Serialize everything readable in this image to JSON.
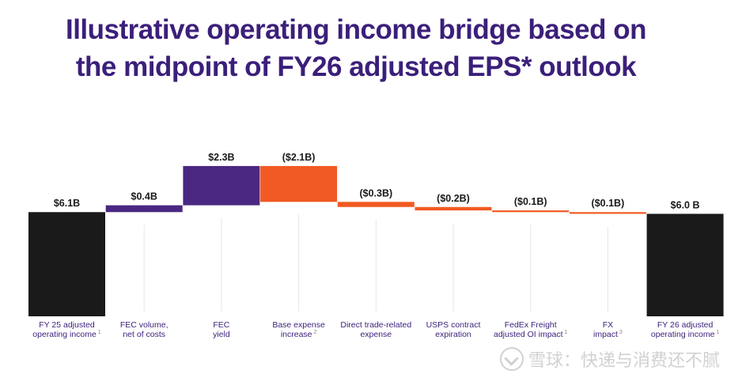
{
  "title_lines": [
    "Illustrative operating income bridge based on",
    "the midpoint of FY26 adjusted EPS* outlook"
  ],
  "watermark": "雪球：快递与消费还不腻",
  "colors": {
    "total": "#1a1a1a",
    "increase": "#4a2882",
    "decrease": "#f15a22",
    "label": "#1a1a1a",
    "category": "#3b1f7a"
  },
  "chart_data": {
    "type": "waterfall",
    "title": "Illustrative operating income bridge based on the midpoint of FY26 adjusted EPS* outlook",
    "unit": "B",
    "ylim": [
      0,
      8.6
    ],
    "grid": false,
    "steps": [
      {
        "category": "FY 25 adjusted operating income",
        "superscript": "1",
        "kind": "total",
        "value": 6.1,
        "label": "$6.1B"
      },
      {
        "category": "FEC volume, net of costs",
        "superscript": "",
        "kind": "increase",
        "value": 0.4,
        "label": "$0.4B"
      },
      {
        "category": "FEC yield",
        "superscript": "",
        "kind": "increase",
        "value": 2.3,
        "label": "$2.3B"
      },
      {
        "category": "Base expense increase",
        "superscript": "2",
        "kind": "decrease",
        "value": -2.1,
        "label": "($2.1B)"
      },
      {
        "category": "Direct trade-related expense",
        "superscript": "",
        "kind": "decrease",
        "value": -0.3,
        "label": "($0.3B)"
      },
      {
        "category": "USPS contract expiration",
        "superscript": "",
        "kind": "decrease",
        "value": -0.2,
        "label": "($0.2B)"
      },
      {
        "category": "FedEx Freight adjusted OI impact",
        "superscript": "1",
        "kind": "decrease",
        "value": -0.1,
        "label": "($0.1B)"
      },
      {
        "category": "FX impact",
        "superscript": "3",
        "kind": "decrease",
        "value": -0.1,
        "label": "($0.1B)"
      },
      {
        "category": "FY 26 adjusted operating income",
        "superscript": "1",
        "kind": "total",
        "value": 6.0,
        "label": "$6.0 B"
      }
    ]
  }
}
